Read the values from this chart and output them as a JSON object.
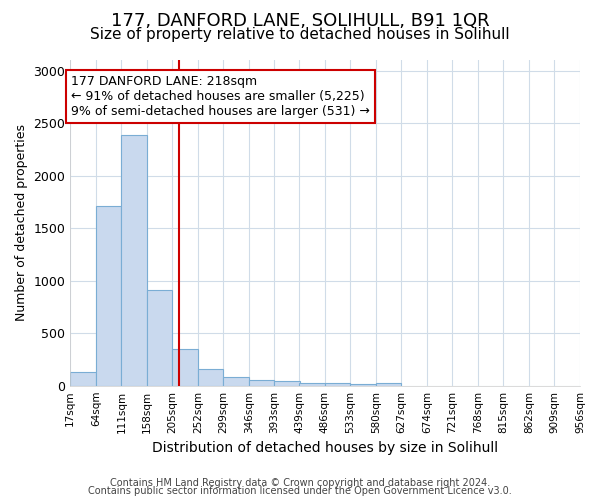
{
  "title": "177, DANFORD LANE, SOLIHULL, B91 1QR",
  "subtitle": "Size of property relative to detached houses in Solihull",
  "xlabel": "Distribution of detached houses by size in Solihull",
  "ylabel": "Number of detached properties",
  "footnote1": "Contains HM Land Registry data © Crown copyright and database right 2024.",
  "footnote2": "Contains public sector information licensed under the Open Government Licence v3.0.",
  "bin_edges": [
    17,
    64,
    111,
    158,
    205,
    252,
    299,
    346,
    393,
    439,
    486,
    533,
    580,
    627,
    674,
    721,
    768,
    815,
    862,
    909,
    956
  ],
  "bar_heights": [
    130,
    1710,
    2390,
    910,
    350,
    155,
    80,
    55,
    45,
    30,
    25,
    20,
    30,
    0,
    0,
    0,
    0,
    0,
    0,
    0
  ],
  "bar_color": "#c9d9ee",
  "bar_edge_color": "#7aadd4",
  "property_size": 218,
  "property_label": "177 DANFORD LANE: 218sqm",
  "annotation_line1": "← 91% of detached houses are smaller (5,225)",
  "annotation_line2": "9% of semi-detached houses are larger (531) →",
  "vline_color": "#cc0000",
  "annotation_box_edge_color": "#cc0000",
  "ylim": [
    0,
    3100
  ],
  "xlim_min": 17,
  "xlim_max": 956,
  "bg_color": "#ffffff",
  "grid_color": "#d0dce8",
  "title_fontsize": 13,
  "subtitle_fontsize": 11,
  "annotation_fontsize": 9,
  "ylabel_fontsize": 9,
  "xlabel_fontsize": 10,
  "footnote_fontsize": 7
}
